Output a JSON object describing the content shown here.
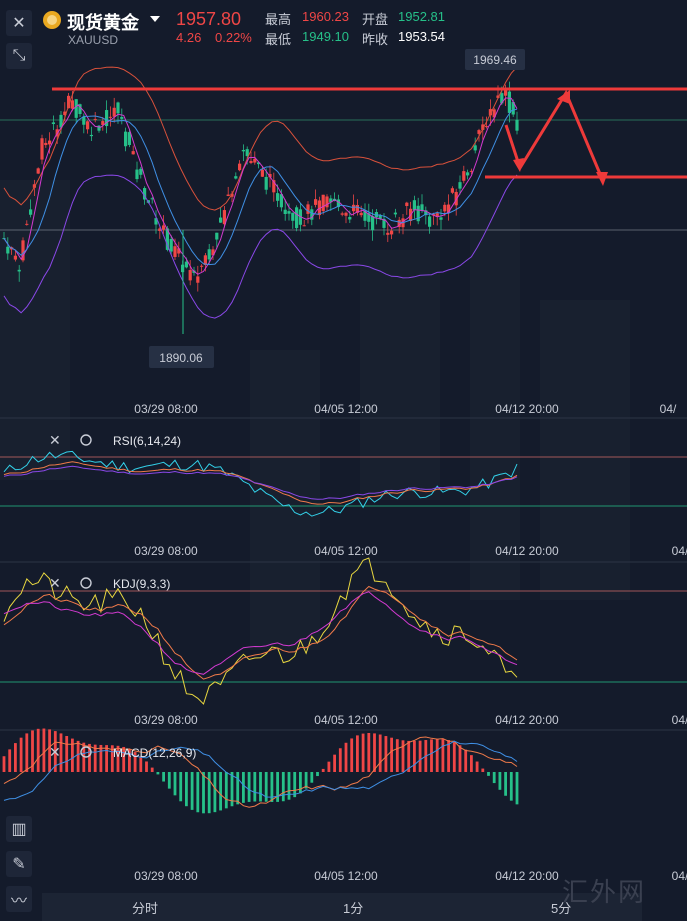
{
  "header": {
    "title": "现货黄金",
    "symbol": "XAUUSD",
    "price": "1957.80",
    "change": "4.26",
    "change_pct": "0.22%",
    "high_label": "最高",
    "high": "1960.23",
    "open_label": "开盘",
    "open": "1952.81",
    "low_label": "最低",
    "low": "1949.10",
    "prev_label": "昨收",
    "prev": "1953.54"
  },
  "annotations": {
    "max_price": "1969.46",
    "min_price": "1890.06"
  },
  "time_labels": {
    "t1": "03/29 08:00",
    "t2": "04/05 12:00",
    "t3": "04/12 20:00",
    "t4": "04/"
  },
  "indicators": {
    "rsi": "RSI(6,14,24)",
    "kdj": "KDJ(9,3,3)",
    "macd": "MACD(12,26,9)"
  },
  "tabs": {
    "t1": "分时",
    "t2": "1分",
    "t3": "5分"
  },
  "watermark": "汇外网",
  "colors": {
    "up": "#ef4646",
    "down": "#26c089",
    "bg": "#141b2b"
  }
}
